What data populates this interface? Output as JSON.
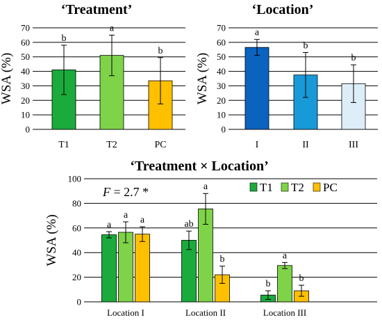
{
  "chart_data": [
    {
      "type": "bar",
      "title": "‘Treatment’",
      "ylabel": "WSA (%)",
      "ylim": [
        0,
        70
      ],
      "yticks": [
        0,
        10,
        20,
        30,
        40,
        50,
        60,
        70
      ],
      "grid": true,
      "categories": [
        "T1",
        "T2",
        "PC"
      ],
      "values": [
        41,
        51,
        33.5
      ],
      "errors": [
        17,
        14,
        16
      ],
      "letters": [
        "b",
        "a",
        "b"
      ],
      "colors": [
        "#1aab3c",
        "#7ed348",
        "#ffc000"
      ]
    },
    {
      "type": "bar",
      "title": "‘Location’",
      "ylabel": "WSA (%)",
      "ylim": [
        0,
        70
      ],
      "yticks": [
        0,
        10,
        20,
        30,
        40,
        50,
        60,
        70
      ],
      "grid": true,
      "categories": [
        "I",
        "II",
        "III"
      ],
      "values": [
        56.5,
        37.5,
        31.5
      ],
      "errors": [
        5.5,
        15.5,
        13
      ],
      "letters": [
        "a",
        "b",
        "b"
      ],
      "colors": [
        "#0b63c0",
        "#189ad8",
        "#deeef8"
      ]
    },
    {
      "type": "bar",
      "title": "‘Treatment × Location’",
      "ylabel": "WSA (%)",
      "ylim": [
        0,
        100
      ],
      "yticks": [
        0,
        20,
        40,
        60,
        80,
        100
      ],
      "grid": true,
      "annotation": "= 2.7 *",
      "annotation_italic": "F",
      "legend_placement": "top-right",
      "categories": [
        "Location I",
        "Location II",
        "Location III"
      ],
      "series": [
        {
          "name": "T1",
          "color": "#1aab3c",
          "values": [
            54.5,
            50,
            5.5
          ],
          "errors": [
            2.5,
            7.5,
            3.5
          ],
          "letters": [
            "a",
            "ab",
            "b"
          ]
        },
        {
          "name": "T2",
          "color": "#7ed348",
          "values": [
            56.5,
            75.5,
            29.5
          ],
          "errors": [
            8.5,
            12.5,
            2.5
          ],
          "letters": [
            "a",
            "a",
            "a"
          ]
        },
        {
          "name": "PC",
          "color": "#ffc000",
          "values": [
            55,
            22,
            9
          ],
          "errors": [
            6,
            7,
            4.5
          ],
          "letters": [
            "a",
            "b",
            "b"
          ]
        }
      ]
    }
  ]
}
